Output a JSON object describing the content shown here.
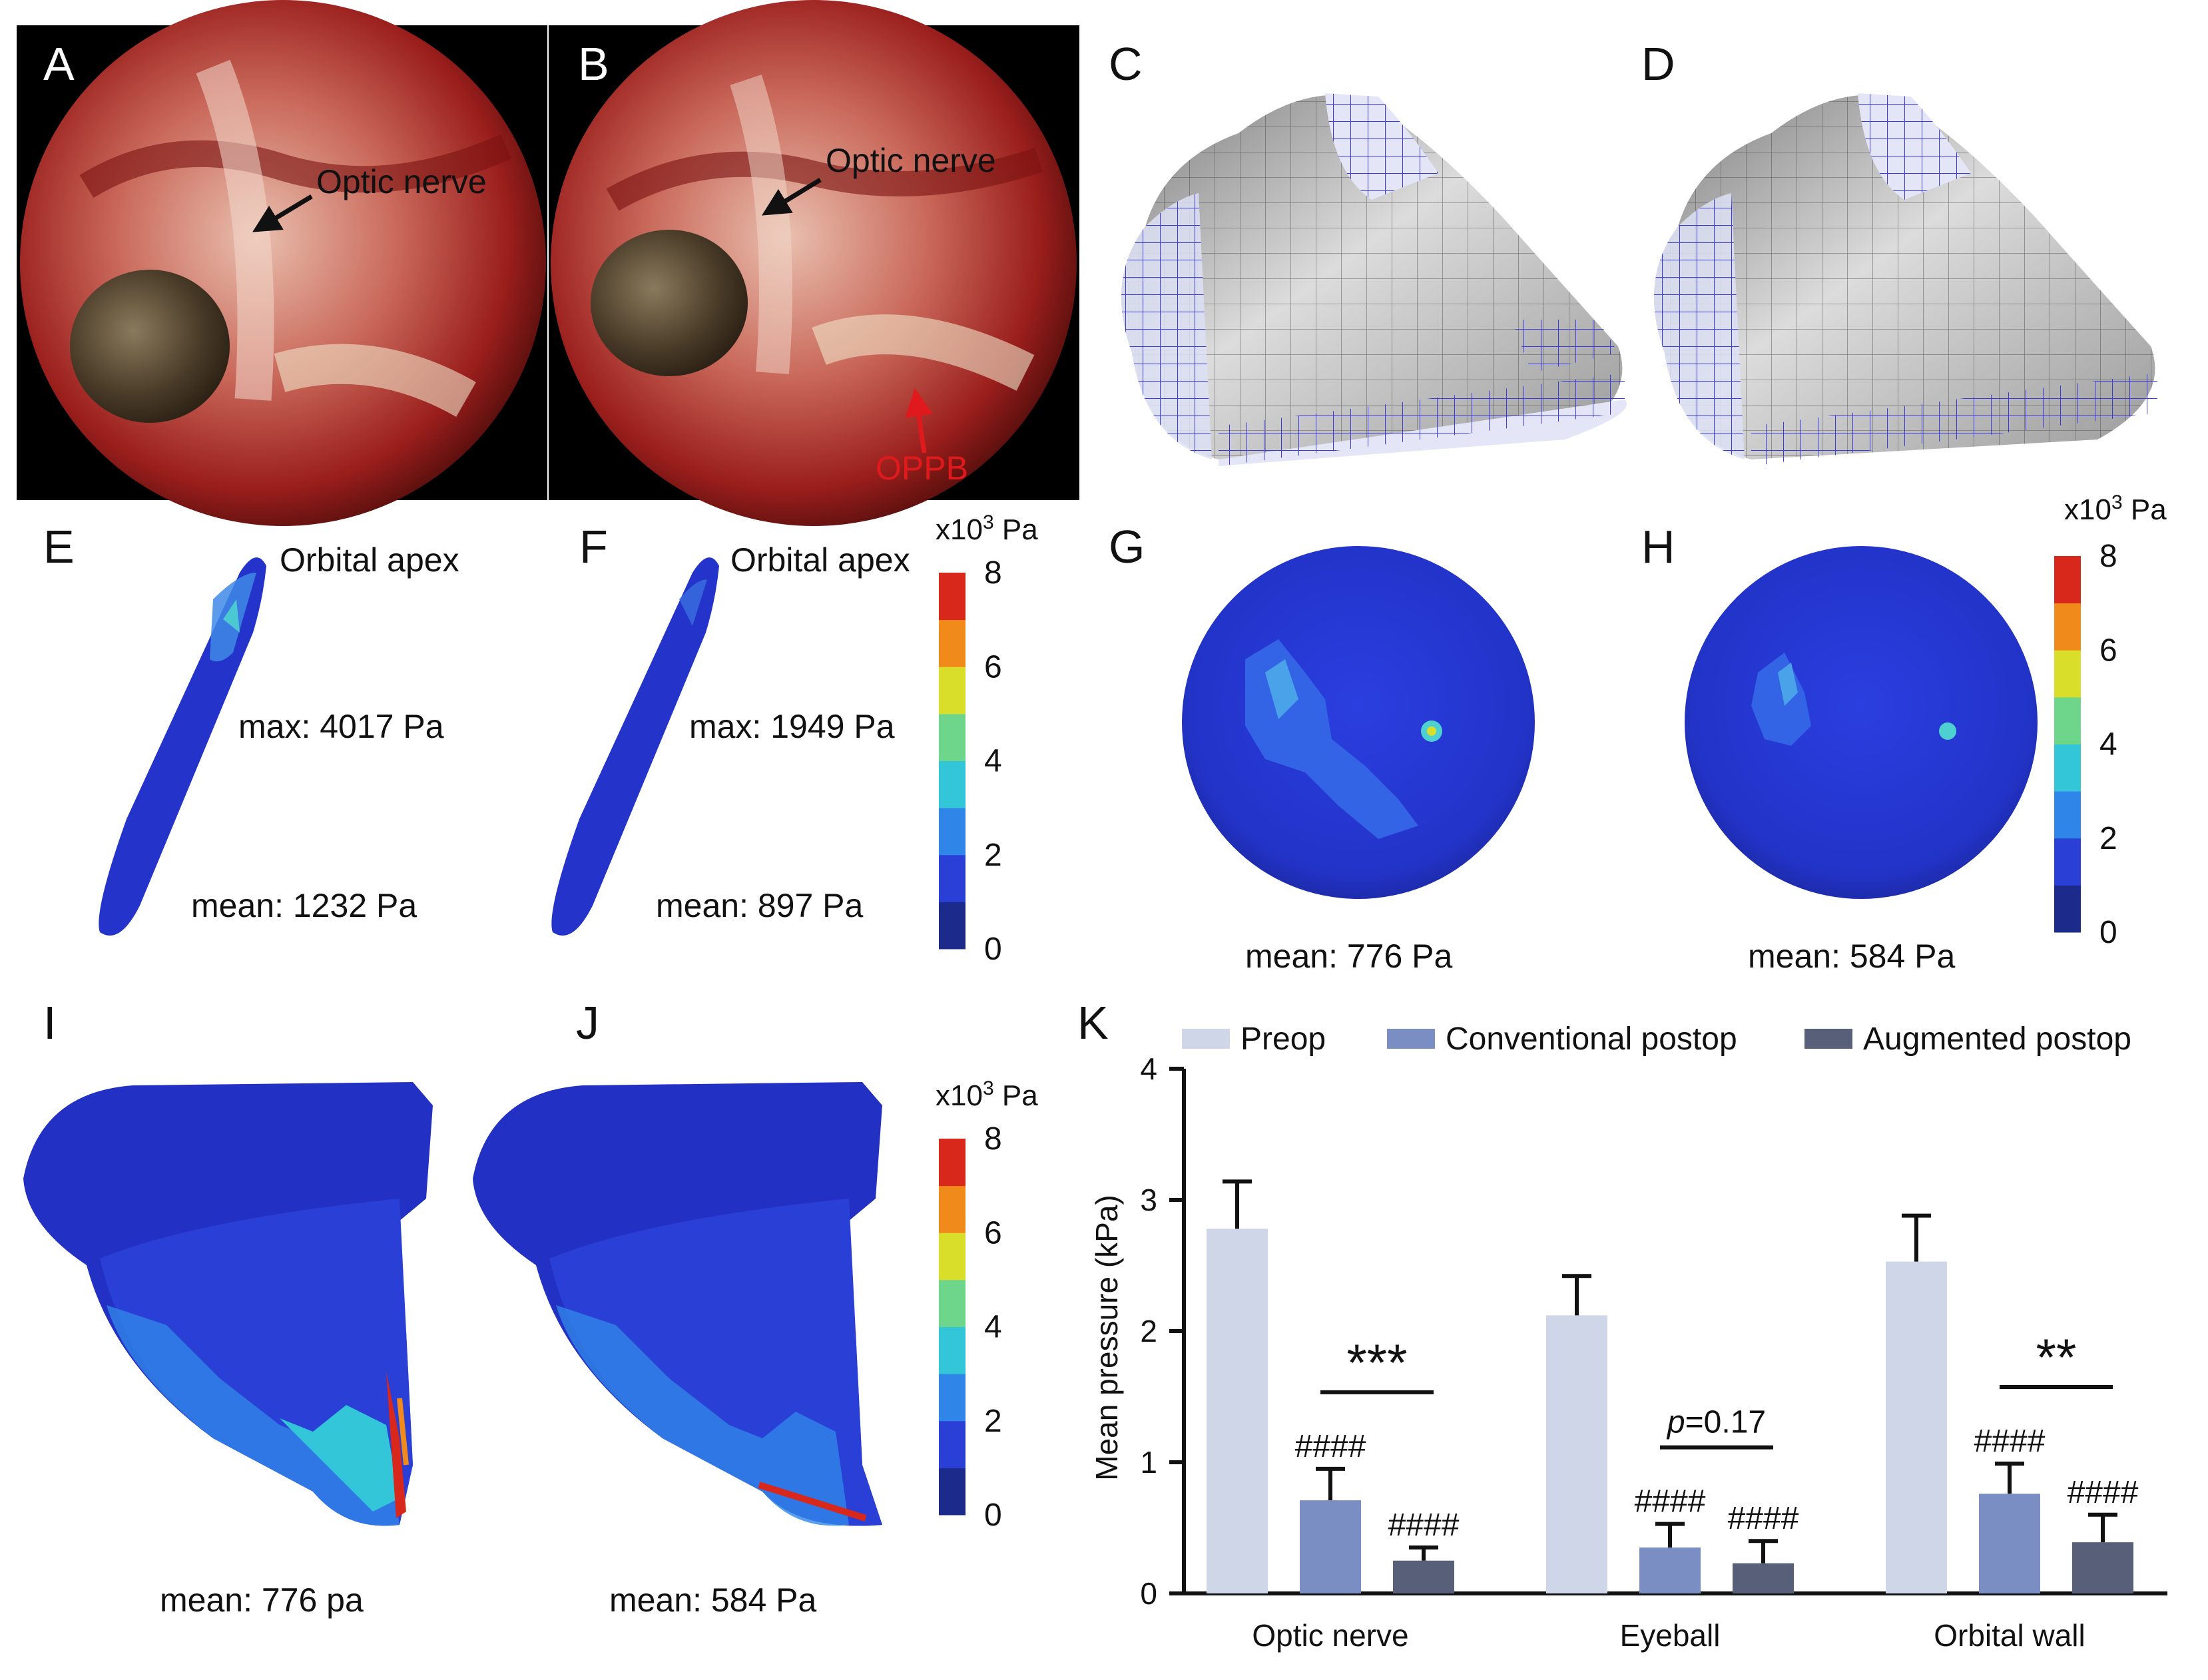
{
  "figure": {
    "panels": {
      "A": {
        "label": "A",
        "arrow_text": "Optic nerve"
      },
      "B": {
        "label": "B",
        "arrow_text": "Optic nerve",
        "red_arrow_text": "OPPB"
      },
      "C": {
        "label": "C"
      },
      "D": {
        "label": "D"
      },
      "E": {
        "label": "E",
        "apex": "Orbital apex",
        "max": "max: 4017 Pa",
        "mean": "mean: 1232 Pa"
      },
      "F": {
        "label": "F",
        "apex": "Orbital apex",
        "max": "max: 1949 Pa",
        "mean": "mean: 897 Pa"
      },
      "G": {
        "label": "G",
        "mean": "mean: 776 Pa"
      },
      "H": {
        "label": "H",
        "mean": "mean: 584 Pa"
      },
      "I": {
        "label": "I",
        "mean": "mean: 776 pa"
      },
      "J": {
        "label": "J",
        "mean": "mean: 584 Pa"
      },
      "K": {
        "label": "K"
      }
    },
    "colorbar": {
      "unit_prefix": "x10",
      "unit_exp": "3",
      "unit_suffix": " Pa",
      "ticks": [
        "8",
        "6",
        "4",
        "2",
        "0"
      ],
      "colors": [
        "#1c2a8c",
        "#2a3fd6",
        "#2f86e8",
        "#33c6d8",
        "#6ed68a",
        "#d9de2a",
        "#f08a1a",
        "#d8281c"
      ]
    }
  },
  "chart_data": {
    "type": "bar",
    "title": "",
    "xlabel": "",
    "ylabel": "Mean pressure (kPa)",
    "ylim": [
      0,
      4
    ],
    "yticks": [
      "0",
      "1",
      "2",
      "3",
      "4"
    ],
    "categories": [
      "Optic nerve",
      "Eyeball",
      "Orbital wall"
    ],
    "series": [
      {
        "name": "Preop",
        "color": "#cfd6e8",
        "values": [
          2.78,
          2.12,
          2.53
        ],
        "errors": [
          0.36,
          0.3,
          0.35
        ]
      },
      {
        "name": "Conventional postop",
        "color": "#7a8ec4",
        "values": [
          0.71,
          0.35,
          0.76
        ],
        "errors": [
          0.24,
          0.18,
          0.23
        ]
      },
      {
        "name": "Augmented postop",
        "color": "#585f78",
        "values": [
          0.25,
          0.23,
          0.39
        ],
        "errors": [
          0.1,
          0.17,
          0.21
        ]
      }
    ],
    "legend": "top",
    "annotations": {
      "hash": "####",
      "optic_sig": "***",
      "eyeball_sig_p": "p",
      "eyeball_sig_rest": "=0.17",
      "orbital_sig": "**"
    }
  }
}
